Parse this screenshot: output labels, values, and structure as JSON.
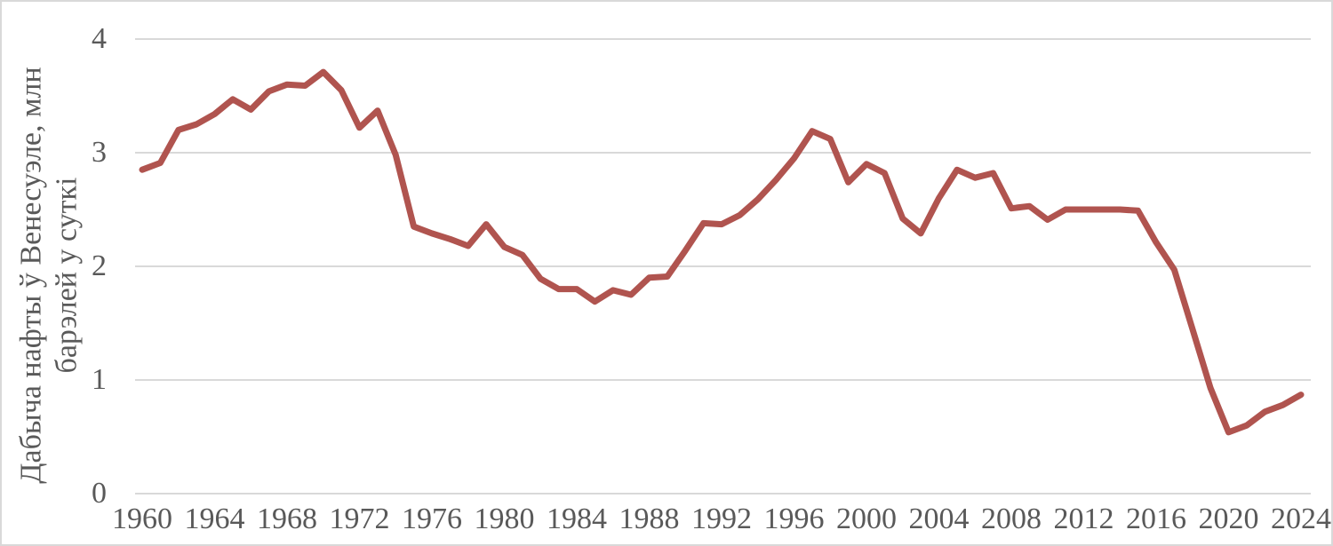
{
  "chart": {
    "background_color": "#ffffff",
    "frame_border_color": "#d9d9d9",
    "grid_color": "#d9d9d9",
    "axis_line_color": "#d9d9d9",
    "text_color": "#595959",
    "line_color": "#b0544f",
    "line_width": 7
  },
  "chart_data": {
    "type": "line",
    "title": "",
    "xlabel": "",
    "ylabel": "Дабыча нафты ў Венесуэле, млн барэлей у суткі",
    "ylabel_line1": "Дабыча нафты ў Венесуэле, млн",
    "ylabel_line2": "барэлей у суткі",
    "ylim": [
      0,
      4
    ],
    "y_ticks": [
      0,
      1,
      2,
      3,
      4
    ],
    "x_ticks": [
      1960,
      1964,
      1968,
      1972,
      1976,
      1980,
      1984,
      1988,
      1992,
      1996,
      2000,
      2004,
      2008,
      2012,
      2016,
      2020,
      2024
    ],
    "grid": "horizontal-only",
    "legend_position": "none",
    "series": [
      {
        "x": [
          1960,
          1961,
          1962,
          1963,
          1964,
          1965,
          1966,
          1967,
          1968,
          1969,
          1970,
          1971,
          1972,
          1973,
          1974,
          1975,
          1976,
          1977,
          1978,
          1979,
          1980,
          1981,
          1982,
          1983,
          1984,
          1985,
          1986,
          1987,
          1988,
          1989,
          1990,
          1991,
          1992,
          1993,
          1994,
          1995,
          1996,
          1997,
          1998,
          1999,
          2000,
          2001,
          2002,
          2003,
          2004,
          2005,
          2006,
          2007,
          2008,
          2009,
          2010,
          2011,
          2012,
          2013,
          2014,
          2015,
          2016,
          2017,
          2018,
          2019,
          2020,
          2021,
          2022,
          2023,
          2024
        ],
        "values": [
          2.85,
          2.91,
          3.2,
          3.25,
          3.34,
          3.47,
          3.38,
          3.54,
          3.6,
          3.59,
          3.71,
          3.55,
          3.22,
          3.37,
          2.98,
          2.35,
          2.29,
          2.24,
          2.18,
          2.37,
          2.17,
          2.1,
          1.89,
          1.8,
          1.8,
          1.69,
          1.79,
          1.75,
          1.9,
          1.91,
          2.14,
          2.38,
          2.37,
          2.45,
          2.59,
          2.76,
          2.95,
          3.19,
          3.12,
          2.74,
          2.9,
          2.82,
          2.42,
          2.29,
          2.6,
          2.85,
          2.78,
          2.82,
          2.51,
          2.53,
          2.41,
          2.5,
          2.5,
          2.5,
          2.5,
          2.49,
          2.21,
          1.97,
          1.45,
          0.93,
          0.54,
          0.6,
          0.72,
          0.78,
          0.87
        ]
      }
    ]
  }
}
